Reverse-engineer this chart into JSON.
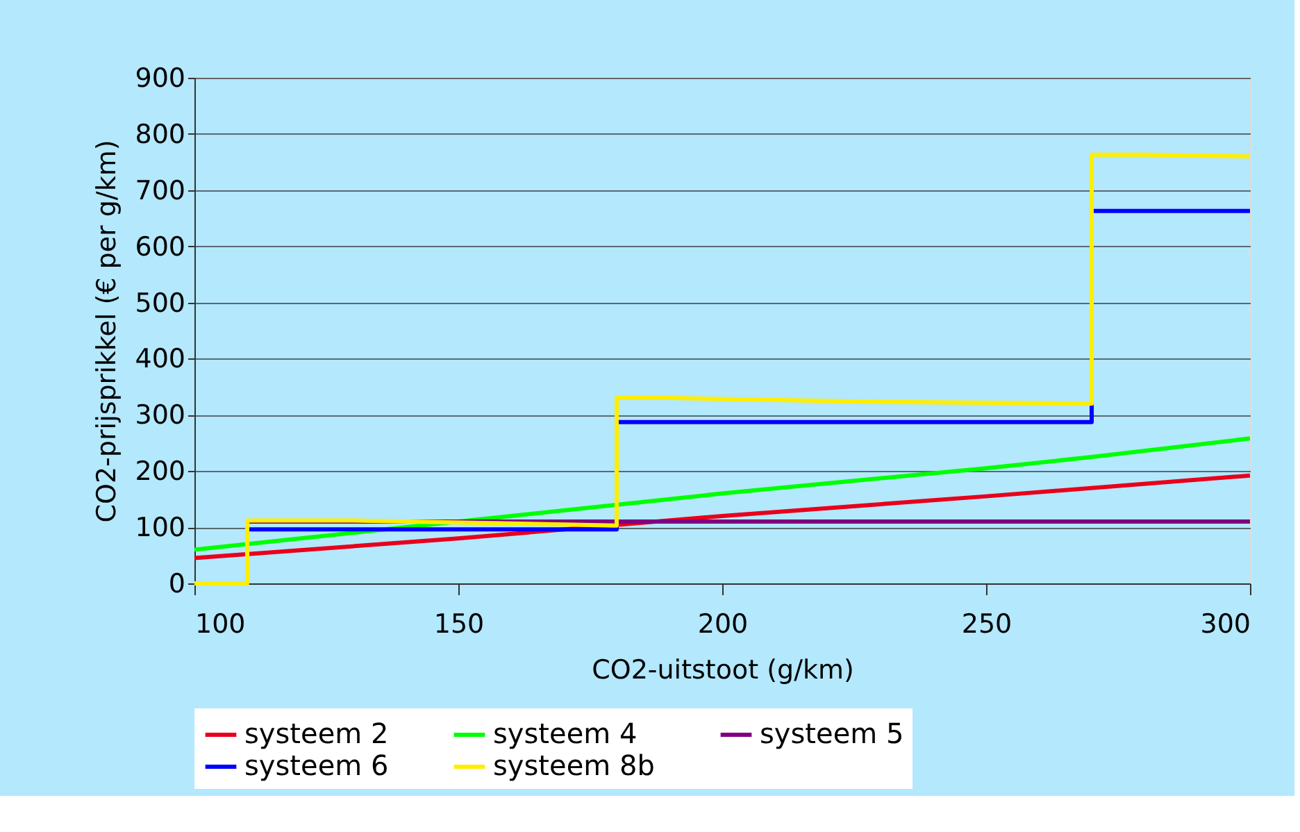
{
  "chart_data": {
    "type": "line",
    "xlabel": "CO2-uitstoot (g/km)",
    "ylabel": "CO2-prijsprikkel (€ per g/km)",
    "xlim": [
      100,
      300
    ],
    "xticks": [
      100,
      150,
      200,
      250,
      300
    ],
    "ylim": [
      0,
      900
    ],
    "yticks": [
      0,
      100,
      200,
      300,
      400,
      500,
      600,
      700,
      800,
      900
    ],
    "grid": "y",
    "legend": "bottom",
    "line_style": "solid",
    "marker": "none",
    "series": [
      {
        "name": "systeem 2",
        "color": "#e8001c",
        "x": [
          100,
          150,
          200,
          250,
          300
        ],
        "values": [
          45,
          80,
          120,
          155,
          192
        ]
      },
      {
        "name": "systeem 4",
        "color": "#00ff00",
        "x": [
          100,
          150,
          200,
          250,
          270,
          300
        ],
        "values": [
          60,
          110,
          160,
          205,
          225,
          258
        ]
      },
      {
        "name": "systeem 5",
        "color": "#800080",
        "x": [
          110,
          300
        ],
        "values": [
          110,
          110
        ]
      },
      {
        "name": "systeem 6",
        "color": "#0000ff",
        "x": [
          110,
          180,
          180,
          270,
          270,
          300
        ],
        "values": [
          96,
          96,
          287,
          287,
          663,
          663
        ]
      },
      {
        "name": "systeem 8b",
        "color": "#ffee00",
        "x": [
          100,
          110,
          110,
          130,
          180,
          180,
          190,
          230,
          270,
          270,
          280,
          300
        ],
        "values": [
          0,
          0,
          112,
          112,
          103,
          330,
          330,
          323,
          320,
          763,
          763,
          760
        ]
      }
    ]
  }
}
